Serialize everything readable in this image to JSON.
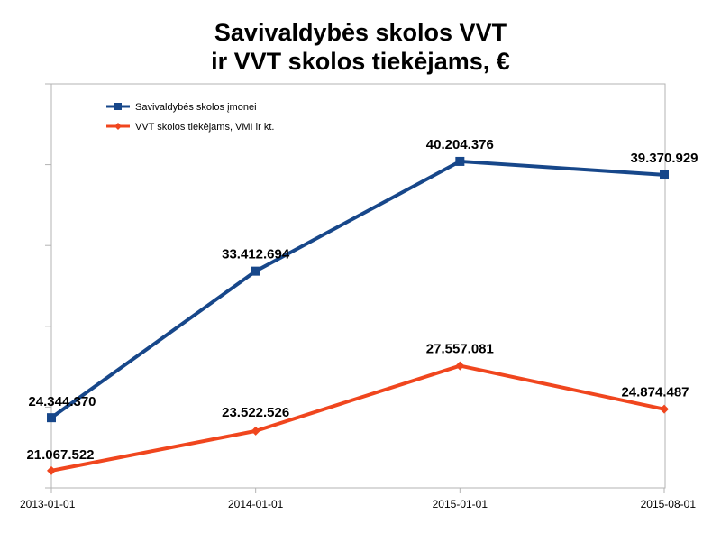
{
  "chart_data": {
    "type": "line",
    "title_lines": [
      "Savivaldybės skolos VVT",
      "ir VVT skolos tiekėjams, €"
    ],
    "categories": [
      "2013-01-01",
      "2014-01-01",
      "2015-01-01",
      "2015-08-01"
    ],
    "ylim": [
      20000000,
      45000000
    ],
    "legend_position": "top-left",
    "grid": false,
    "series": [
      {
        "name": "Savivaldybės skolos įmonei",
        "color": "#17478a",
        "marker": "square",
        "values": [
          24344370,
          33412694,
          40204376,
          39370929
        ],
        "labels": [
          "24.344.370",
          "33.412.694",
          "40.204.376",
          "39.370.929"
        ]
      },
      {
        "name": "VVT skolos tiekėjams, VMI ir kt.",
        "color": "#f0461e",
        "marker": "diamond",
        "values": [
          21067522,
          23522526,
          27557081,
          24874487
        ],
        "labels": [
          "21.067.522",
          "23.522.526",
          "27.557.081",
          "24.874.487"
        ]
      }
    ]
  }
}
